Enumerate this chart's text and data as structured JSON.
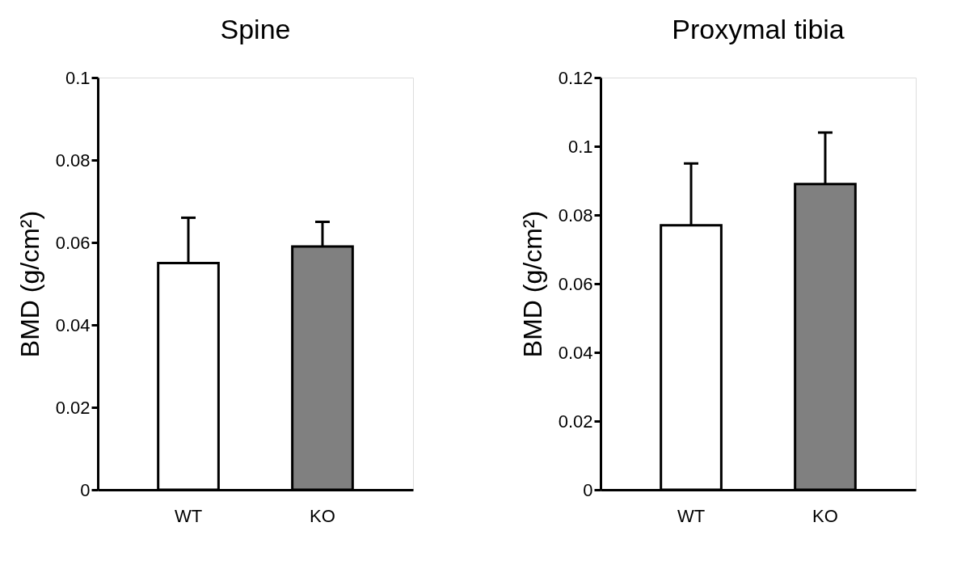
{
  "chart_data": [
    {
      "type": "bar",
      "title": "Spine",
      "ylabel": "BMD (g/cm²)",
      "categories": [
        "WT",
        "KO"
      ],
      "values": [
        0.055,
        0.059
      ],
      "colors": [
        "#ffffff",
        "#808080"
      ],
      "errors": [
        [
          0.055,
          0.066
        ],
        [
          0.059,
          0.065
        ]
      ],
      "ylim": [
        0,
        0.1
      ],
      "yticks": [
        0,
        0.02,
        0.04,
        0.06,
        0.08,
        0.1
      ],
      "grid": false,
      "legend": false
    },
    {
      "type": "bar",
      "title": "Proxymal tibia",
      "ylabel": "BMD (g/cm²)",
      "categories": [
        "WT",
        "KO"
      ],
      "values": [
        0.077,
        0.089
      ],
      "colors": [
        "#ffffff",
        "#808080"
      ],
      "errors": [
        [
          0.077,
          0.095
        ],
        [
          0.089,
          0.104
        ]
      ],
      "ylim": [
        0,
        0.12
      ],
      "yticks": [
        0,
        0.02,
        0.04,
        0.06,
        0.08,
        0.1,
        0.12
      ],
      "grid": false,
      "legend": false
    }
  ]
}
